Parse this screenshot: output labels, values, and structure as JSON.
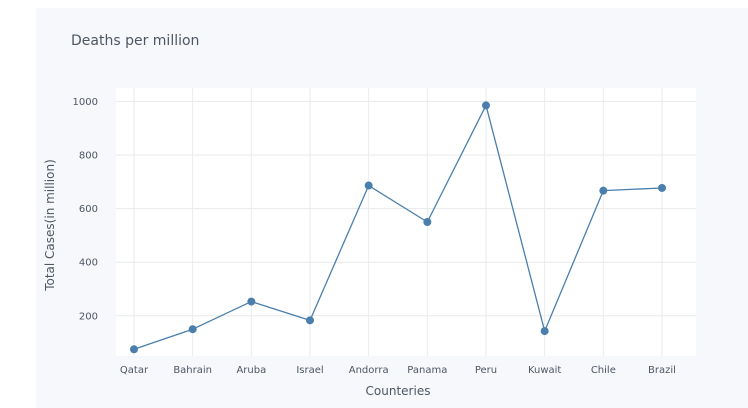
{
  "chart_data": {
    "type": "line",
    "title": "Deaths per million",
    "xlabel": "Counteries",
    "ylabel": "Total Cases(in million)",
    "categories": [
      "Qatar",
      "Bahrain",
      "Aruba",
      "Israel",
      "Andorra",
      "Panama",
      "Peru",
      "Kuwait",
      "Chile",
      "Brazil"
    ],
    "series": [
      {
        "values": [
          75,
          150,
          253,
          183,
          686,
          550,
          985,
          143,
          667,
          677
        ]
      }
    ],
    "yticks": [
      200,
      400,
      600,
      800,
      1000
    ],
    "ylim": [
      50,
      1050
    ],
    "grid": true,
    "colors": {
      "line": "#4a7fad",
      "marker": "#4a7fad",
      "grid": "#e8eaee"
    }
  }
}
